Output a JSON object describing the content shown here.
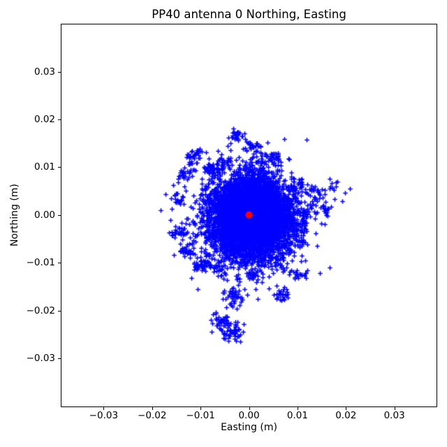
{
  "chart_data": {
    "type": "scatter",
    "title": "PP40 antenna 0 Northing, Easting",
    "xlabel": "Easting (m)",
    "ylabel": "Northing (m)",
    "xlim": [
      -0.0387,
      0.0387
    ],
    "ylim": [
      -0.0401,
      0.0399
    ],
    "xticks": [
      {
        "value": -0.03,
        "label": "−0.03"
      },
      {
        "value": -0.02,
        "label": "−0.02"
      },
      {
        "value": -0.01,
        "label": "−0.01"
      },
      {
        "value": 0.0,
        "label": "0.00"
      },
      {
        "value": 0.01,
        "label": "0.01"
      },
      {
        "value": 0.02,
        "label": "0.02"
      },
      {
        "value": 0.03,
        "label": "0.03"
      }
    ],
    "yticks": [
      {
        "value": 0.03,
        "label": "0.03"
      },
      {
        "value": 0.02,
        "label": "0.02"
      },
      {
        "value": 0.01,
        "label": "0.01"
      },
      {
        "value": 0.0,
        "label": "0.00"
      },
      {
        "value": -0.01,
        "label": "−0.01"
      },
      {
        "value": -0.02,
        "label": "−0.02"
      },
      {
        "value": -0.03,
        "label": "−0.03"
      }
    ],
    "grid": false,
    "legend": false,
    "seed": 42,
    "series": [
      {
        "name": "antenna-position-scatter",
        "marker": "+",
        "color": "#0000ff",
        "marker_half_px": 3.3,
        "marker_line_px": 1.6,
        "summary": "dense cloud of position solutions centered at (0,0), extent roughly ±0.012 m, with satellite clusters",
        "clusters": [
          {
            "cx": 0.0002,
            "cy": -0.0003,
            "n": 6200,
            "std": 0.004
          },
          {
            "cx": 0.0002,
            "cy": -0.0003,
            "n": 900,
            "std": 0.0057
          },
          {
            "cx": -0.008,
            "cy": 0.0097,
            "n": 30,
            "std": 0.001
          },
          {
            "cx": -0.005,
            "cy": 0.0108,
            "n": 22,
            "std": 0.0008
          },
          {
            "cx": 0.0005,
            "cy": 0.0145,
            "n": 24,
            "std": 0.0007
          },
          {
            "cx": 0.003,
            "cy": 0.0132,
            "n": 12,
            "std": 0.0009
          },
          {
            "cx": 0.0055,
            "cy": 0.012,
            "n": 22,
            "std": 0.0008
          },
          {
            "cx": 0.01,
            "cy": 0.006,
            "n": 30,
            "std": 0.001
          },
          {
            "cx": 0.0115,
            "cy": 0.0002,
            "n": 20,
            "std": 0.0008
          },
          {
            "cx": 0.011,
            "cy": -0.0028,
            "n": 18,
            "std": 0.0007
          },
          {
            "cx": -0.0085,
            "cy": -0.0092,
            "n": 22,
            "std": 0.0008
          },
          {
            "cx": -0.006,
            "cy": -0.0112,
            "n": 20,
            "std": 0.0008
          },
          {
            "cx": 0.0008,
            "cy": -0.0125,
            "n": 22,
            "std": 0.0008
          },
          {
            "cx": 0.006,
            "cy": -0.0105,
            "n": 20,
            "std": 0.0008
          },
          {
            "cx": -0.0115,
            "cy": 0.0122,
            "n": 38,
            "std": 0.001
          },
          {
            "cx": -0.0135,
            "cy": 0.0085,
            "n": 26,
            "std": 0.0007
          },
          {
            "cx": -0.0146,
            "cy": 0.0034,
            "n": 20,
            "std": 0.0006
          },
          {
            "cx": -0.0145,
            "cy": -0.0041,
            "n": 28,
            "std": 0.0008
          },
          {
            "cx": -0.0129,
            "cy": -0.0073,
            "n": 28,
            "std": 0.0008
          },
          {
            "cx": -0.0104,
            "cy": -0.0104,
            "n": 32,
            "std": 0.0009
          },
          {
            "cx": -0.0025,
            "cy": 0.0167,
            "n": 30,
            "std": 0.0007
          },
          {
            "cx": 0.0136,
            "cy": 0.0042,
            "n": 26,
            "std": 0.0008
          },
          {
            "cx": 0.0169,
            "cy": 0.0055,
            "n": 16,
            "std": 0.0013
          },
          {
            "cx": 0.0158,
            "cy": 0.001,
            "n": 16,
            "std": 0.0007
          },
          {
            "cx": -0.0032,
            "cy": -0.0172,
            "n": 45,
            "std": 0.001
          },
          {
            "cx": 0.0068,
            "cy": -0.0167,
            "n": 26,
            "std": 0.0008
          },
          {
            "cx": 0.0103,
            "cy": -0.0126,
            "n": 18,
            "std": 0.0006
          },
          {
            "cx": -0.0062,
            "cy": -0.0223,
            "n": 36,
            "std": 0.001
          },
          {
            "cx": -0.0035,
            "cy": -0.0243,
            "n": 55,
            "std": 0.0011
          },
          {
            "cx": -0.0044,
            "cy": 0.0145,
            "n": 1,
            "std": 0.0
          },
          {
            "cx": -0.0088,
            "cy": 0.0132,
            "n": 1,
            "std": 0.0
          },
          {
            "cx": 0.0014,
            "cy": -0.0155,
            "n": 1,
            "std": 0.0
          }
        ]
      },
      {
        "name": "reference-point",
        "marker": "o",
        "color": "#ff0000",
        "radius_px": 5,
        "points": [
          [
            0.0,
            0.0
          ]
        ]
      }
    ]
  }
}
